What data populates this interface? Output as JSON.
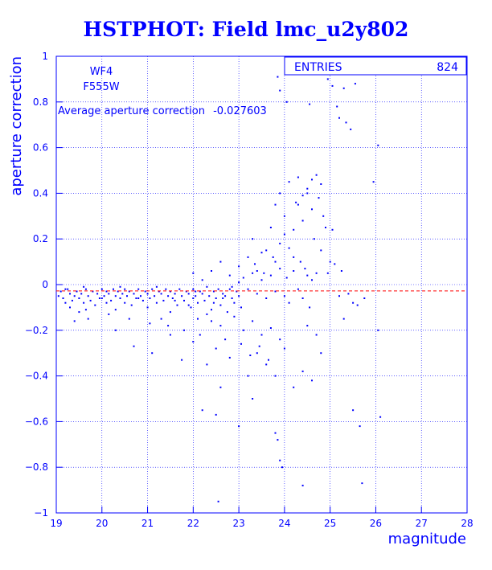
{
  "title": "HSTPHOT: Field lmc_u2y802",
  "colors": {
    "axis": "#0000ff",
    "points": "#0000ff",
    "mean_line": "#ff0000",
    "background": "#ffffff"
  },
  "stats_box": {
    "label": "ENTRIES",
    "value": "824"
  },
  "chip_label": "WF4",
  "filter_label": "F555W",
  "average_label": "Average aperture correction",
  "average_value": "-0.027603",
  "chart_data": {
    "type": "scatter",
    "title": "HSTPHOT: Field lmc_u2y802",
    "xlabel": "magnitude",
    "ylabel": "aperture correction",
    "xlim": [
      19,
      28
    ],
    "ylim": [
      -1,
      1
    ],
    "xticks": [
      19,
      20,
      21,
      22,
      23,
      24,
      25,
      26,
      27,
      28
    ],
    "yticks": [
      -1,
      -0.8,
      -0.6,
      -0.4,
      -0.2,
      0,
      0.2,
      0.4,
      0.6,
      0.8,
      1
    ],
    "ytick_labels": [
      "−1",
      "−0.8",
      "−0.6",
      "−0.4",
      "−0.2",
      "0",
      "0.2",
      "0.4",
      "0.6",
      "0.8",
      "1"
    ],
    "grid": true,
    "reference_line": {
      "y": -0.027603,
      "style": "dashed"
    },
    "series": [
      {
        "points": [
          [
            19.05,
            -0.05
          ],
          [
            19.1,
            -0.03
          ],
          [
            19.15,
            -0.06
          ],
          [
            19.2,
            -0.08
          ],
          [
            19.25,
            -0.02
          ],
          [
            19.3,
            -0.1
          ],
          [
            19.3,
            -0.04
          ],
          [
            19.35,
            -0.07
          ],
          [
            19.4,
            -0.05
          ],
          [
            19.45,
            -0.03
          ],
          [
            19.5,
            -0.12
          ],
          [
            19.5,
            -0.06
          ],
          [
            19.55,
            -0.04
          ],
          [
            19.6,
            -0.08
          ],
          [
            19.65,
            -0.02
          ],
          [
            19.7,
            -0.05
          ],
          [
            19.7,
            -0.15
          ],
          [
            19.75,
            -0.07
          ],
          [
            19.8,
            -0.03
          ],
          [
            19.85,
            -0.09
          ],
          [
            19.9,
            -0.04
          ],
          [
            19.95,
            -0.06
          ],
          [
            20.0,
            -0.02
          ],
          [
            20.05,
            -0.05
          ],
          [
            20.1,
            -0.08
          ],
          [
            20.1,
            -0.03
          ],
          [
            20.15,
            -0.04
          ],
          [
            20.2,
            -0.07
          ],
          [
            20.25,
            -0.02
          ],
          [
            20.3,
            -0.05
          ],
          [
            20.3,
            -0.11
          ],
          [
            20.35,
            -0.03
          ],
          [
            20.4,
            -0.06
          ],
          [
            20.45,
            -0.04
          ],
          [
            20.5,
            -0.08
          ],
          [
            20.5,
            -0.02
          ],
          [
            20.55,
            -0.05
          ],
          [
            20.6,
            -0.03
          ],
          [
            20.65,
            -0.09
          ],
          [
            20.7,
            -0.04
          ],
          [
            20.75,
            -0.06
          ],
          [
            20.8,
            -0.02
          ],
          [
            20.85,
            -0.05
          ],
          [
            20.9,
            -0.07
          ],
          [
            20.95,
            -0.03
          ],
          [
            21.0,
            -0.04
          ],
          [
            21.0,
            -0.1
          ],
          [
            21.05,
            -0.06
          ],
          [
            21.1,
            -0.02
          ],
          [
            21.15,
            -0.05
          ],
          [
            21.2,
            -0.08
          ],
          [
            21.25,
            -0.03
          ],
          [
            21.3,
            -0.04
          ],
          [
            21.35,
            -0.07
          ],
          [
            21.4,
            -0.02
          ],
          [
            21.45,
            -0.05
          ],
          [
            21.5,
            -0.12
          ],
          [
            21.5,
            -0.03
          ],
          [
            21.55,
            -0.06
          ],
          [
            21.6,
            -0.04
          ],
          [
            21.65,
            -0.09
          ],
          [
            21.7,
            -0.02
          ],
          [
            21.75,
            -0.05
          ],
          [
            21.8,
            -0.07
          ],
          [
            21.85,
            -0.03
          ],
          [
            21.9,
            -0.04
          ],
          [
            21.95,
            -0.1
          ],
          [
            22.0,
            -0.06
          ],
          [
            22.0,
            -0.02
          ],
          [
            22.05,
            -0.05
          ],
          [
            22.1,
            -0.08
          ],
          [
            22.15,
            -0.03
          ],
          [
            22.2,
            -0.04
          ],
          [
            22.25,
            -0.07
          ],
          [
            22.3,
            -0.01
          ],
          [
            22.35,
            -0.05
          ],
          [
            22.4,
            -0.11
          ],
          [
            22.45,
            -0.03
          ],
          [
            22.5,
            -0.06
          ],
          [
            22.55,
            -0.02
          ],
          [
            22.6,
            -0.09
          ],
          [
            22.65,
            -0.04
          ],
          [
            22.7,
            -0.05
          ],
          [
            22.75,
            -0.12
          ],
          [
            22.8,
            -0.02
          ],
          [
            22.85,
            -0.06
          ],
          [
            22.9,
            -0.08
          ],
          [
            22.95,
            -0.03
          ],
          [
            23.0,
            -0.05
          ],
          [
            23.05,
            -0.1
          ],
          [
            19.4,
            -0.16
          ],
          [
            20.3,
            -0.2
          ],
          [
            20.7,
            -0.27
          ],
          [
            21.1,
            -0.3
          ],
          [
            21.5,
            -0.22
          ],
          [
            21.75,
            -0.33
          ],
          [
            22.0,
            -0.25
          ],
          [
            22.3,
            -0.35
          ],
          [
            22.5,
            -0.28
          ],
          [
            22.8,
            -0.32
          ],
          [
            21.9,
            -0.09
          ],
          [
            22.1,
            -0.15
          ],
          [
            22.3,
            -0.13
          ],
          [
            22.6,
            -0.18
          ],
          [
            22.9,
            -0.14
          ],
          [
            23.1,
            -0.2
          ],
          [
            23.3,
            -0.16
          ],
          [
            23.5,
            -0.22
          ],
          [
            23.7,
            -0.19
          ],
          [
            23.9,
            -0.24
          ],
          [
            22.0,
            0.05
          ],
          [
            22.2,
            0.02
          ],
          [
            22.4,
            0.06
          ],
          [
            22.6,
            0.1
          ],
          [
            22.8,
            0.04
          ],
          [
            23.0,
            0.08
          ],
          [
            23.2,
            0.12
          ],
          [
            23.4,
            0.06
          ],
          [
            23.6,
            0.15
          ],
          [
            23.8,
            0.1
          ],
          [
            23.0,
            0.01
          ],
          [
            23.1,
            0.03
          ],
          [
            23.2,
            -0.02
          ],
          [
            23.3,
            0.05
          ],
          [
            23.4,
            -0.04
          ],
          [
            23.5,
            0.02
          ],
          [
            23.6,
            -0.06
          ],
          [
            23.7,
            0.04
          ],
          [
            23.8,
            -0.03
          ],
          [
            23.9,
            0.07
          ],
          [
            24.0,
            -0.05
          ],
          [
            24.05,
            0.03
          ],
          [
            24.1,
            -0.08
          ],
          [
            24.2,
            0.06
          ],
          [
            24.3,
            -0.02
          ],
          [
            24.35,
            0.1
          ],
          [
            24.4,
            -0.06
          ],
          [
            24.5,
            0.04
          ],
          [
            24.55,
            -0.1
          ],
          [
            24.6,
            0.02
          ],
          [
            23.3,
            0.2
          ],
          [
            23.5,
            0.14
          ],
          [
            23.7,
            0.25
          ],
          [
            23.9,
            0.18
          ],
          [
            24.0,
            0.3
          ],
          [
            24.2,
            0.24
          ],
          [
            24.3,
            0.35
          ],
          [
            24.4,
            0.28
          ],
          [
            24.5,
            0.4
          ],
          [
            24.6,
            0.33
          ],
          [
            24.1,
            0.45
          ],
          [
            24.3,
            0.47
          ],
          [
            24.5,
            0.42
          ],
          [
            24.7,
            0.48
          ],
          [
            24.8,
            0.44
          ],
          [
            24.6,
            0.46
          ],
          [
            24.4,
            0.39
          ],
          [
            24.25,
            0.36
          ],
          [
            24.75,
            0.38
          ],
          [
            24.85,
            0.3
          ],
          [
            23.9,
            0.4
          ],
          [
            23.8,
            0.35
          ],
          [
            24.0,
            0.22
          ],
          [
            24.1,
            0.16
          ],
          [
            24.2,
            0.12
          ],
          [
            24.65,
            0.2
          ],
          [
            24.9,
            0.25
          ],
          [
            25.0,
            0.1
          ],
          [
            24.8,
            0.15
          ],
          [
            24.95,
            0.05
          ],
          [
            23.4,
            -0.3
          ],
          [
            23.6,
            -0.35
          ],
          [
            23.8,
            -0.4
          ],
          [
            24.0,
            -0.28
          ],
          [
            24.2,
            -0.45
          ],
          [
            24.4,
            -0.38
          ],
          [
            24.6,
            -0.42
          ],
          [
            24.8,
            -0.3
          ],
          [
            24.7,
            -0.22
          ],
          [
            24.5,
            -0.18
          ],
          [
            23.2,
            -0.4
          ],
          [
            22.6,
            -0.45
          ],
          [
            22.2,
            -0.55
          ],
          [
            22.5,
            -0.57
          ],
          [
            23.0,
            -0.62
          ],
          [
            23.3,
            -0.5
          ],
          [
            23.8,
            -0.65
          ],
          [
            23.9,
            -0.77
          ],
          [
            23.95,
            -0.8
          ],
          [
            23.85,
            -0.68
          ],
          [
            22.55,
            -0.95
          ],
          [
            24.4,
            -0.88
          ],
          [
            25.7,
            -0.87
          ],
          [
            25.5,
            -0.55
          ],
          [
            25.65,
            -0.62
          ],
          [
            26.1,
            -0.58
          ],
          [
            26.05,
            -0.2
          ],
          [
            25.3,
            -0.15
          ],
          [
            25.5,
            -0.08
          ],
          [
            25.2,
            -0.05
          ],
          [
            23.85,
            0.91
          ],
          [
            23.9,
            0.85
          ],
          [
            24.05,
            0.8
          ],
          [
            24.55,
            0.79
          ],
          [
            24.95,
            0.9
          ],
          [
            25.05,
            0.87
          ],
          [
            25.2,
            0.73
          ],
          [
            25.3,
            0.86
          ],
          [
            25.55,
            0.88
          ],
          [
            25.35,
            0.71
          ],
          [
            25.15,
            0.78
          ],
          [
            25.45,
            0.68
          ],
          [
            26.05,
            0.61
          ],
          [
            25.95,
            0.45
          ],
          [
            25.05,
            0.24
          ],
          [
            25.1,
            0.09
          ],
          [
            25.25,
            0.06
          ],
          [
            25.4,
            -0.04
          ],
          [
            25.6,
            -0.09
          ],
          [
            25.75,
            -0.06
          ],
          [
            19.2,
            -0.02
          ],
          [
            19.6,
            -0.01
          ],
          [
            20.0,
            -0.06
          ],
          [
            20.4,
            -0.01
          ],
          [
            20.8,
            -0.06
          ],
          [
            21.2,
            -0.01
          ],
          [
            21.6,
            -0.07
          ],
          [
            22.05,
            -0.03
          ],
          [
            22.45,
            -0.08
          ],
          [
            22.85,
            -0.01
          ],
          [
            21.3,
            -0.15
          ],
          [
            21.45,
            -0.18
          ],
          [
            21.8,
            -0.2
          ],
          [
            22.15,
            -0.22
          ],
          [
            22.4,
            -0.16
          ],
          [
            22.7,
            -0.24
          ],
          [
            23.05,
            -0.26
          ],
          [
            23.25,
            -0.31
          ],
          [
            23.45,
            -0.27
          ],
          [
            23.65,
            -0.33
          ],
          [
            19.65,
            -0.11
          ],
          [
            20.15,
            -0.13
          ],
          [
            20.6,
            -0.15
          ],
          [
            21.05,
            -0.17
          ],
          [
            22.65,
            -0.06
          ],
          [
            23.35,
            0.09
          ],
          [
            23.55,
            0.05
          ],
          [
            23.75,
            0.12
          ],
          [
            24.45,
            0.07
          ],
          [
            24.7,
            0.05
          ]
        ]
      }
    ]
  }
}
